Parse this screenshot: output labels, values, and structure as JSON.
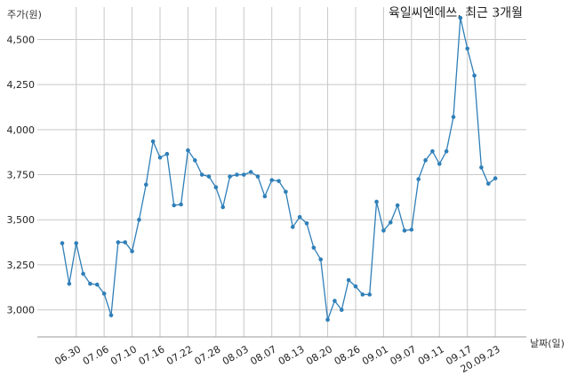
{
  "chart_data": {
    "type": "line",
    "title": "육일씨엔에쓰, 최근 3개월",
    "ylabel": "주가(원)",
    "xlabel": "날짜(일)",
    "ylim": [
      2850,
      4680
    ],
    "yticks": [
      3000,
      3250,
      3500,
      3750,
      4000,
      4250,
      4500
    ],
    "ytick_labels": [
      "3,000",
      "3,250",
      "3,500",
      "3,750",
      "4,000",
      "4,250",
      "4,500"
    ],
    "xticks": [
      {
        "label": "06.30",
        "index": 2
      },
      {
        "label": "07.06",
        "index": 6
      },
      {
        "label": "07.10",
        "index": 10
      },
      {
        "label": "07.16",
        "index": 14
      },
      {
        "label": "07.22",
        "index": 18
      },
      {
        "label": "07.28",
        "index": 22
      },
      {
        "label": "08.03",
        "index": 26
      },
      {
        "label": "08.07",
        "index": 30
      },
      {
        "label": "08.13",
        "index": 34
      },
      {
        "label": "08.20",
        "index": 38
      },
      {
        "label": "08.26",
        "index": 42
      },
      {
        "label": "09.01",
        "index": 46
      },
      {
        "label": "09.07",
        "index": 50
      },
      {
        "label": "09.11",
        "index": 54
      },
      {
        "label": "09.17",
        "index": 58
      },
      {
        "label": "20.09.23",
        "index": 62
      }
    ],
    "grid": true,
    "values": [
      3370,
      3145,
      3370,
      3200,
      3145,
      3140,
      3090,
      2970,
      3375,
      3375,
      3325,
      3500,
      3695,
      3935,
      3845,
      3865,
      3580,
      3585,
      3885,
      3830,
      3750,
      3740,
      3680,
      3570,
      3740,
      3750,
      3750,
      3765,
      3740,
      3630,
      3720,
      3715,
      3655,
      3460,
      3515,
      3480,
      3345,
      3280,
      2945,
      3050,
      3000,
      3165,
      3130,
      3085,
      3085,
      3600,
      3440,
      3485,
      3580,
      3440,
      3445,
      3725,
      3830,
      3880,
      3810,
      3880,
      4070,
      4620,
      4450,
      4300,
      3790,
      3700,
      3730
    ]
  },
  "colors": {
    "line": "#2f7fb8",
    "grid": "#c8c8c8",
    "axis": "#999999"
  }
}
